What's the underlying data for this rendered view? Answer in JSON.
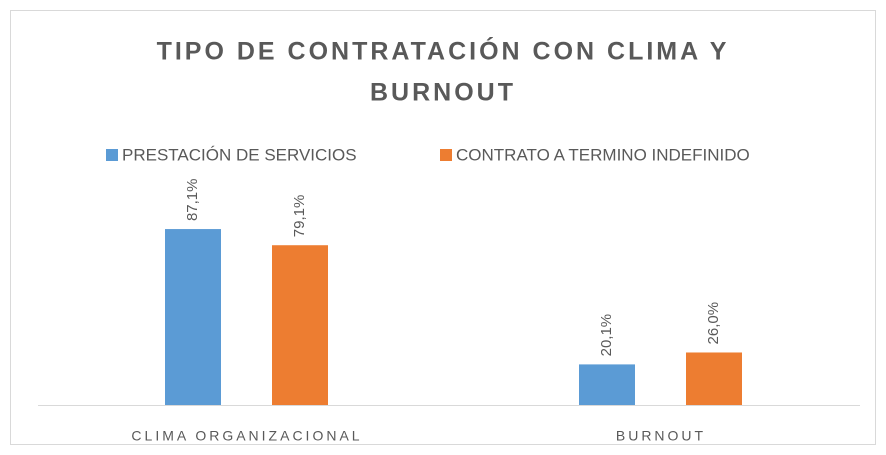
{
  "chart_data": {
    "type": "bar",
    "title_lines": [
      "TIPO DE CONTRATACIÓN CON CLIMA Y",
      "BURNOUT"
    ],
    "categories": [
      "CLIMA ORGANIZACIONAL",
      "BURNOUT"
    ],
    "series": [
      {
        "name": "PRESTACIÓN DE SERVICIOS",
        "color": "#5b9bd5",
        "values": [
          87.1,
          20.1
        ],
        "value_labels": [
          "87,1%",
          "20,1%"
        ]
      },
      {
        "name": "CONTRATO A TERMINO INDEFINIDO",
        "color": "#ed7d31",
        "values": [
          79.1,
          26.0
        ],
        "value_labels": [
          "79,1%",
          "26,0%"
        ]
      }
    ],
    "legend": "top"
  }
}
